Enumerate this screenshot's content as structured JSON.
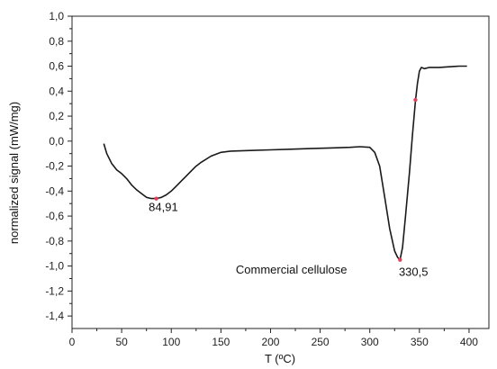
{
  "chart_data": {
    "type": "line",
    "xlabel": "T (ºC)",
    "ylabel": "normalized signal (mW/mg)",
    "xlim": [
      0,
      420
    ],
    "ylim": [
      -1.5,
      1.0
    ],
    "xticks": [
      0,
      50,
      100,
      150,
      200,
      250,
      300,
      350,
      400
    ],
    "yticks": [
      1.0,
      0.8,
      0.6,
      0.4,
      0.2,
      0.0,
      -0.2,
      -0.4,
      -0.6,
      -0.8,
      -1.0,
      -1.2,
      -1.4
    ],
    "xtick_labels": [
      "0",
      "50",
      "100",
      "150",
      "200",
      "250",
      "300",
      "350",
      "400"
    ],
    "ytick_labels": [
      "1,0",
      "0,8",
      "0,6",
      "0,4",
      "0,2",
      "0,0",
      "-0,2",
      "-0,4",
      "-0,6",
      "-0,8",
      "-1,0",
      "-1,2",
      "-1,4"
    ],
    "grid": false,
    "series": [
      {
        "color": "#1a1a1a",
        "x": [
          32,
          35,
          40,
          45,
          50,
          55,
          60,
          65,
          70,
          75,
          80,
          85,
          90,
          95,
          100,
          105,
          110,
          115,
          120,
          125,
          130,
          140,
          150,
          160,
          180,
          200,
          220,
          240,
          260,
          280,
          290,
          300,
          305,
          310,
          315,
          320,
          325,
          328,
          330.5,
          333,
          336,
          340,
          343,
          346,
          348,
          350,
          352,
          355,
          360,
          370,
          380,
          390,
          398
        ],
        "y": [
          -0.02,
          -0.1,
          -0.18,
          -0.23,
          -0.26,
          -0.3,
          -0.35,
          -0.39,
          -0.42,
          -0.45,
          -0.46,
          -0.46,
          -0.45,
          -0.43,
          -0.4,
          -0.36,
          -0.32,
          -0.28,
          -0.24,
          -0.2,
          -0.17,
          -0.12,
          -0.09,
          -0.08,
          -0.075,
          -0.07,
          -0.065,
          -0.06,
          -0.055,
          -0.05,
          -0.045,
          -0.05,
          -0.09,
          -0.2,
          -0.45,
          -0.7,
          -0.88,
          -0.93,
          -0.95,
          -0.85,
          -0.6,
          -0.25,
          0.05,
          0.32,
          0.46,
          0.56,
          0.59,
          0.58,
          0.59,
          0.59,
          0.595,
          0.6,
          0.6
        ]
      }
    ],
    "markers": [
      {
        "x": 84.91,
        "y": -0.46,
        "color": "#e0405a"
      },
      {
        "x": 330.5,
        "y": -0.95,
        "color": "#e0405a"
      },
      {
        "x": 346,
        "y": 0.33,
        "color": "#e0405a"
      }
    ],
    "annotations": [
      {
        "text": "84,91",
        "x": 92,
        "y": -0.56
      },
      {
        "text": "330,5",
        "x": 344,
        "y": -1.08
      },
      {
        "text": "Commercial cellulose",
        "x": 165,
        "y": -1.06
      }
    ]
  }
}
